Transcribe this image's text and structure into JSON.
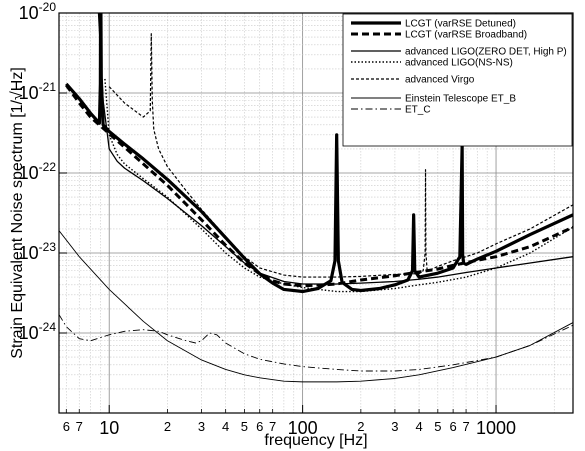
{
  "chart_data": {
    "type": "line",
    "title": "",
    "xlabel": "frequency [Hz]",
    "ylabel": "Strain Equivalent Noise spectrum [1/√Hz]",
    "xscale": "log",
    "yscale": "log",
    "xlim": [
      5.5,
      2500
    ],
    "ylim": [
      1e-25,
      1e-20
    ],
    "grid": true,
    "legend_position": "top-right",
    "x_major_ticks": [
      {
        "value": 10,
        "label": "10"
      },
      {
        "value": 100,
        "label": "100"
      },
      {
        "value": 1000,
        "label": "1000"
      }
    ],
    "x_minor_ticks": [
      {
        "value": 6,
        "label": "6"
      },
      {
        "value": 7,
        "label": "7"
      },
      {
        "value": 20,
        "label": "2"
      },
      {
        "value": 30,
        "label": "3"
      },
      {
        "value": 40,
        "label": "4"
      },
      {
        "value": 50,
        "label": "5"
      },
      {
        "value": 60,
        "label": "6"
      },
      {
        "value": 70,
        "label": "7"
      },
      {
        "value": 200,
        "label": "2"
      },
      {
        "value": 300,
        "label": "3"
      },
      {
        "value": 400,
        "label": "4"
      },
      {
        "value": 500,
        "label": "5"
      },
      {
        "value": 600,
        "label": "6"
      },
      {
        "value": 700,
        "label": "7"
      }
    ],
    "y_ticks": [
      {
        "value": 1e-20,
        "base": "10",
        "exp": "-20"
      },
      {
        "value": 1e-21,
        "base": "10",
        "exp": "-21"
      },
      {
        "value": 1e-22,
        "base": "10",
        "exp": "-22"
      },
      {
        "value": 1e-23,
        "base": "10",
        "exp": "-23"
      },
      {
        "value": 1e-24,
        "base": "10",
        "exp": "-24"
      }
    ],
    "series": [
      {
        "name": "LCGT (varRSE Detuned)",
        "color": "#000000",
        "width": 3.2,
        "dash": "",
        "x": [
          6,
          7,
          8,
          8.9,
          9.0,
          9.02,
          9.06,
          9.1,
          9.3,
          10,
          12,
          15,
          20,
          30,
          40,
          50,
          60,
          70,
          80,
          100,
          120,
          140,
          147,
          150,
          153,
          160,
          180,
          200,
          250,
          300,
          350,
          370,
          375,
          380,
          400,
          500,
          600,
          650,
          668,
          672,
          680,
          700,
          800,
          1000,
          1500,
          2500
        ],
        "y": [
          1.3e-21,
          8.5e-22,
          5.6e-22,
          4.2e-22,
          1.3e-21,
          1e-20,
          1e-20,
          1.5e-21,
          4e-22,
          3.3e-22,
          2.3e-22,
          1.5e-22,
          8.3e-23,
          3.3e-23,
          1.55e-23,
          8.6e-24,
          5.5e-24,
          4.2e-24,
          3.5e-24,
          3.3e-24,
          3.6e-24,
          4.5e-24,
          8e-24,
          3e-22,
          8e-24,
          4.3e-24,
          3.5e-24,
          3.4e-24,
          3.6e-24,
          4e-24,
          4.6e-24,
          6e-24,
          3e-23,
          6e-24,
          5e-24,
          5.6e-24,
          6.5e-24,
          9e-24,
          2.2e-22,
          9.5e-24,
          7.5e-24,
          7.2e-24,
          8.4e-24,
          1.05e-23,
          1.7e-23,
          3e-23
        ]
      },
      {
        "name": "LCGT (varRSE Broadband)",
        "color": "#000000",
        "width": 3.0,
        "dash": "7,4",
        "x": [
          6,
          7,
          8,
          10,
          12,
          15,
          20,
          30,
          40,
          50,
          60,
          70,
          80,
          100,
          130,
          150,
          200,
          300,
          400,
          500,
          600,
          700,
          1000,
          1500,
          2500
        ],
        "y": [
          1.25e-21,
          7.5e-22,
          5e-22,
          3.1e-22,
          2.1e-22,
          1.3e-22,
          7e-23,
          2.6e-23,
          1.25e-23,
          7.5e-24,
          5.5e-24,
          4.5e-24,
          4.1e-24,
          3.9e-24,
          4e-24,
          4.1e-24,
          4.6e-24,
          5.2e-24,
          5.8e-24,
          6.3e-24,
          7e-24,
          7.6e-24,
          9e-24,
          1.2e-23,
          2.1e-23
        ]
      },
      {
        "name": "advanced LIGO(ZERO DET, High P)",
        "color": "#000000",
        "width": 1.3,
        "dash": "",
        "x": [
          8.8,
          9.3,
          10,
          11,
          12,
          15,
          20,
          30,
          40,
          50,
          60,
          80,
          100,
          150,
          200,
          300,
          400,
          500,
          700,
          1000,
          1500,
          2500
        ],
        "y": [
          1e-20,
          8e-22,
          2e-22,
          1.4e-22,
          1.15e-22,
          8e-23,
          4.8e-23,
          2.2e-23,
          1.2e-23,
          7.5e-24,
          5.6e-24,
          4.4e-24,
          4.1e-24,
          4.1e-24,
          4.2e-24,
          4.4e-24,
          4.7e-24,
          5e-24,
          5.7e-24,
          6.5e-24,
          7.5e-24,
          9e-24
        ]
      },
      {
        "name": "advanced LIGO(NS-NS)",
        "color": "#000000",
        "width": 1.4,
        "dash": "1.5,2",
        "x": [
          9.5,
          10,
          11,
          12,
          15,
          20,
          30,
          40,
          50,
          60,
          80,
          100,
          150,
          200,
          300,
          400,
          500,
          700,
          1000,
          1500,
          2500
        ],
        "y": [
          1.5e-21,
          3e-22,
          1.7e-22,
          1.3e-22,
          8.5e-23,
          5e-23,
          2e-23,
          1e-23,
          6.5e-24,
          5e-24,
          4.1e-24,
          3.7e-24,
          3.3e-24,
          3.3e-24,
          3.6e-24,
          4e-24,
          4.3e-24,
          5e-24,
          6.5e-24,
          1e-23,
          2.1e-23
        ]
      },
      {
        "name": "advanced Virgo",
        "color": "#000000",
        "width": 1.2,
        "dash": "3,2",
        "x": [
          10,
          12,
          15,
          16.3,
          16.5,
          16.7,
          17,
          18,
          20,
          25,
          30,
          40,
          50,
          60,
          80,
          100,
          150,
          200,
          300,
          380,
          400,
          420,
          430,
          432,
          434,
          440,
          460,
          500,
          600,
          800,
          1000,
          1500,
          2500
        ],
        "y": [
          1.2e-21,
          7.5e-22,
          5e-22,
          6e-22,
          5.5e-21,
          8e-22,
          3.5e-22,
          2e-22,
          1.2e-22,
          6e-23,
          3.5e-23,
          1.6e-23,
          9e-24,
          6.5e-24,
          5.3e-24,
          5e-24,
          5e-24,
          5.1e-24,
          5.4e-24,
          5.5e-24,
          5.5e-24,
          6e-24,
          1e-23,
          1.1e-22,
          1e-23,
          6.2e-24,
          6.2e-24,
          6.8e-24,
          8e-24,
          1e-23,
          1.3e-23,
          2e-23,
          4e-23
        ]
      },
      {
        "name": "Einstein Telescope ET_B",
        "color": "#000000",
        "width": 0.9,
        "dash": "",
        "x": [
          5.5,
          7,
          10,
          15,
          20,
          30,
          40,
          50,
          60,
          80,
          100,
          150,
          200,
          300,
          400,
          600,
          1000,
          1500,
          2500
        ],
        "y": [
          1.9e-23,
          9e-24,
          3.5e-24,
          1.4e-24,
          8e-25,
          4.6e-25,
          3.5e-25,
          3e-25,
          2.75e-25,
          2.5e-25,
          2.45e-25,
          2.45e-25,
          2.5e-25,
          2.7e-25,
          3e-25,
          3.7e-25,
          5e-25,
          7e-25,
          1.35e-24
        ]
      },
      {
        "name": "ET_C",
        "color": "#000000",
        "width": 0.9,
        "dash": "7,3,1.5,3",
        "x": [
          5.5,
          6,
          7,
          8,
          10,
          12,
          15,
          18,
          20,
          25,
          28,
          30,
          33,
          36,
          40,
          50,
          60,
          80,
          100,
          150,
          200,
          300,
          400,
          600,
          1000,
          1500,
          2500
        ],
        "y": [
          1.7e-24,
          1.2e-24,
          8.5e-25,
          8e-25,
          9.5e-25,
          1.05e-24,
          1.1e-24,
          1.05e-24,
          9.5e-25,
          8e-25,
          7.5e-25,
          8e-25,
          1e-24,
          9.5e-25,
          7.5e-25,
          5.5e-25,
          4.7e-25,
          4.1e-25,
          3.8e-25,
          3.5e-25,
          3.35e-25,
          3.35e-25,
          3.5e-25,
          4e-25,
          5e-25,
          7e-25,
          1.25e-24
        ]
      }
    ]
  }
}
